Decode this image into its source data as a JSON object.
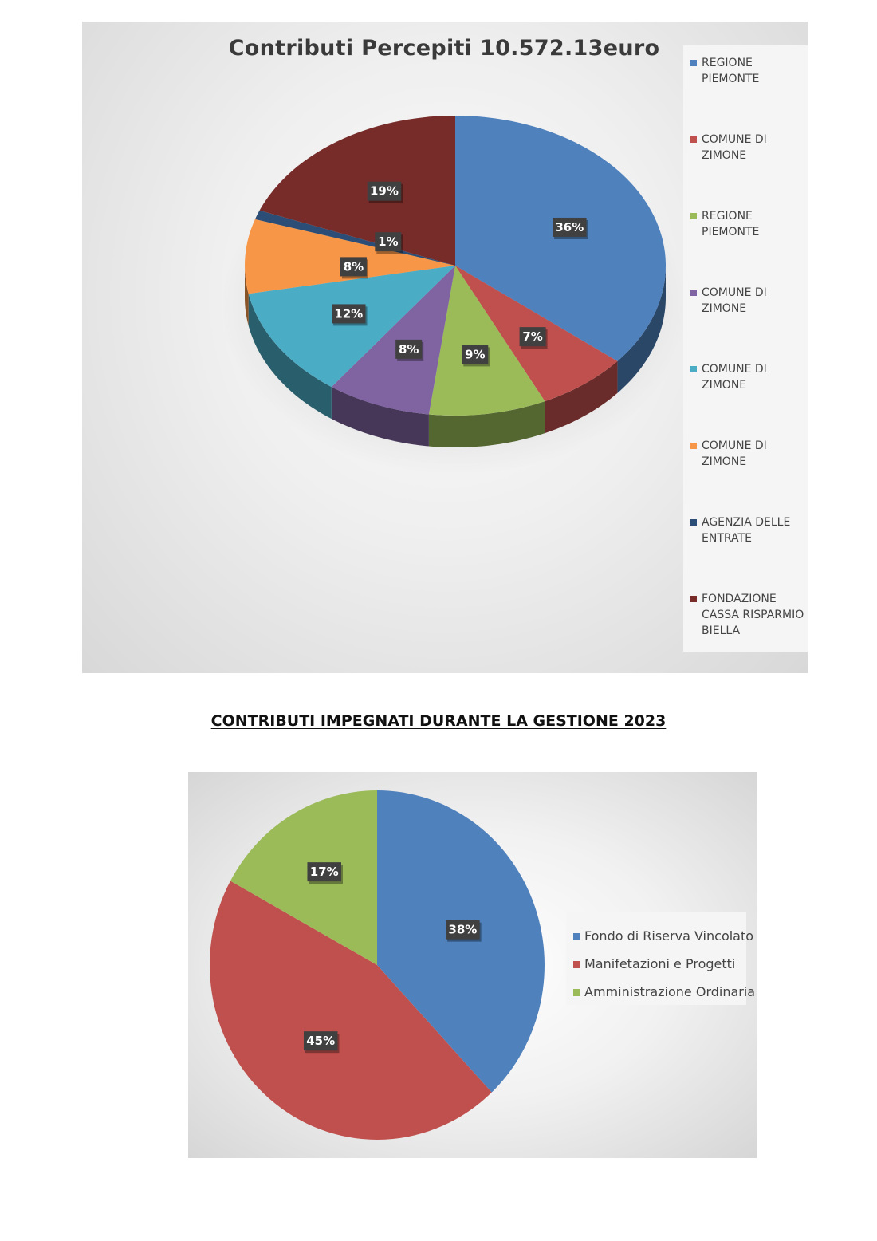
{
  "section_heading": "CONTRIBUTI IMPEGNATI DURANTE LA GESTIONE 2023",
  "chart_data": [
    {
      "type": "pie",
      "title": "Contributi Percepiti 10.572.13euro",
      "style": "3d",
      "legend_position": "right",
      "categories": [
        "REGIONE PIEMONTE",
        "COMUNE DI ZIMONE",
        "REGIONE PIEMONTE",
        "COMUNE DI ZIMONE",
        "COMUNE DI ZIMONE",
        "COMUNE DI ZIMONE",
        "AGENZIA DELLE ENTRATE",
        "FONDAZIONE CASSA RISPARMIO BIELLA"
      ],
      "values": [
        36,
        7,
        9,
        8,
        12,
        8,
        1,
        19
      ],
      "labels": [
        "36%",
        "7%",
        "9%",
        "8%",
        "12%",
        "8%",
        "1%",
        "19%"
      ],
      "colors": [
        "#4f81bd",
        "#c0504d",
        "#9bbb59",
        "#8064a2",
        "#4bacc6",
        "#f79646",
        "#2c4d75",
        "#772c2a"
      ]
    },
    {
      "type": "pie",
      "title": "",
      "legend_position": "right",
      "categories": [
        "Fondo di Riserva Vincolato",
        "Manifetazioni e Progetti",
        "Amministrazione Ordinaria"
      ],
      "values": [
        38,
        45,
        17
      ],
      "labels": [
        "38%",
        "45%",
        "17%"
      ],
      "colors": [
        "#4f81bd",
        "#c0504d",
        "#9bbb59"
      ]
    }
  ]
}
